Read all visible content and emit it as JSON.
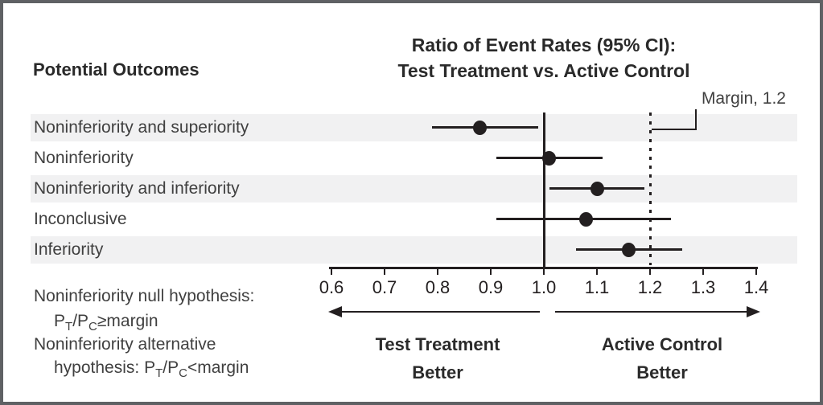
{
  "header": {
    "left_column_title": "Potential Outcomes",
    "chart_title_line1": "Ratio of Event Rates (95% CI):",
    "chart_title_line2": "Test Treatment vs. Active Control",
    "margin_label": "Margin, 1.2"
  },
  "chart_data": {
    "type": "forest",
    "title": "Ratio of Event Rates (95% CI): Test Treatment vs. Active Control",
    "x_axis": {
      "min": 0.6,
      "max": 1.4,
      "ticks": [
        0.6,
        0.7,
        0.8,
        0.9,
        1.0,
        1.1,
        1.2,
        1.3,
        1.4
      ],
      "tick_labels": [
        "0.6",
        "0.7",
        "0.8",
        "0.9",
        "1.0",
        "1.1",
        "1.2",
        "1.3",
        "1.4"
      ]
    },
    "reference_line": 1.0,
    "margin_line": 1.2,
    "rows": [
      {
        "label": "Noninferiority and superiority",
        "estimate": 0.88,
        "ci_low": 0.79,
        "ci_high": 0.99,
        "shaded": true
      },
      {
        "label": "Noninferiority",
        "estimate": 1.01,
        "ci_low": 0.91,
        "ci_high": 1.11,
        "shaded": false
      },
      {
        "label": "Noninferiority and inferiority",
        "estimate": 1.1,
        "ci_low": 1.01,
        "ci_high": 1.19,
        "shaded": true
      },
      {
        "label": "Inconclusive",
        "estimate": 1.08,
        "ci_low": 0.91,
        "ci_high": 1.24,
        "shaded": false
      },
      {
        "label": "Inferiority",
        "estimate": 1.16,
        "ci_low": 1.06,
        "ci_high": 1.26,
        "shaded": true
      }
    ]
  },
  "footer": {
    "left_direction": {
      "line1": "Test Treatment",
      "line2": "Better"
    },
    "right_direction": {
      "line1": "Active Control",
      "line2": "Better"
    }
  },
  "hypotheses": {
    "null_line": "Noninferiority null hypothesis:",
    "alt_line": "Noninferiority alternative",
    "alt_prefix": "hypothesis: ",
    "p": "P",
    "sub_t": "T",
    "slash_p": "/P",
    "sub_c": "C",
    "null_relation": "≥margin",
    "alt_relation": "<margin"
  },
  "colors": {
    "ink": "#231f20",
    "stripe": "#f1f1f2",
    "border": "#5f6164"
  }
}
